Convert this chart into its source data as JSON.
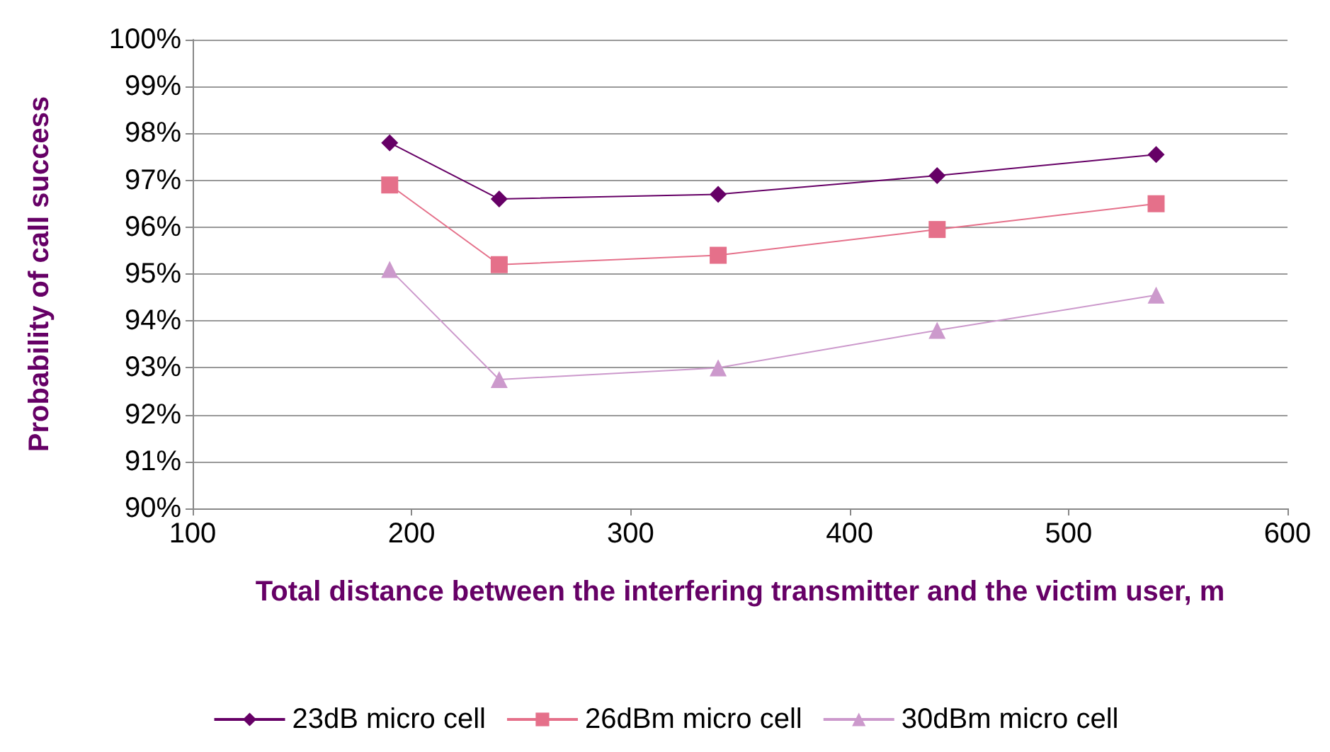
{
  "chart_data": {
    "type": "line",
    "xlabel": "Total distance between the interfering transmitter and the victim user, m",
    "ylabel": "Probability of call success",
    "x": [
      190,
      240,
      340,
      440,
      540
    ],
    "series": [
      {
        "name": "23dB micro cell",
        "color": "#660066",
        "marker": "diamond",
        "values": [
          97.8,
          96.6,
          96.7,
          97.1,
          97.55
        ]
      },
      {
        "name": "26dBm micro cell",
        "color": "#e5708a",
        "marker": "square",
        "values": [
          96.9,
          95.2,
          95.4,
          95.95,
          96.5
        ]
      },
      {
        "name": "30dBm micro cell",
        "color": "#cc99cc",
        "marker": "triangle",
        "values": [
          95.1,
          92.75,
          93.0,
          93.8,
          94.55
        ]
      }
    ],
    "xlim": [
      100,
      600
    ],
    "xticks": [
      100,
      200,
      300,
      400,
      500,
      600
    ],
    "ylim": [
      90,
      100
    ],
    "yticks": [
      {
        "value": 90,
        "label": "90%"
      },
      {
        "value": 91,
        "label": "91%"
      },
      {
        "value": 92,
        "label": "92%"
      },
      {
        "value": 93,
        "label": "93%"
      },
      {
        "value": 94,
        "label": "94%"
      },
      {
        "value": 95,
        "label": "95%"
      },
      {
        "value": 96,
        "label": "96%"
      },
      {
        "value": 97,
        "label": "97%"
      },
      {
        "value": 98,
        "label": "98%"
      },
      {
        "value": 99,
        "label": "99%"
      },
      {
        "value": 100,
        "label": "100%"
      }
    ],
    "grid": "y",
    "legend": "bottom",
    "line_style": "solid"
  }
}
